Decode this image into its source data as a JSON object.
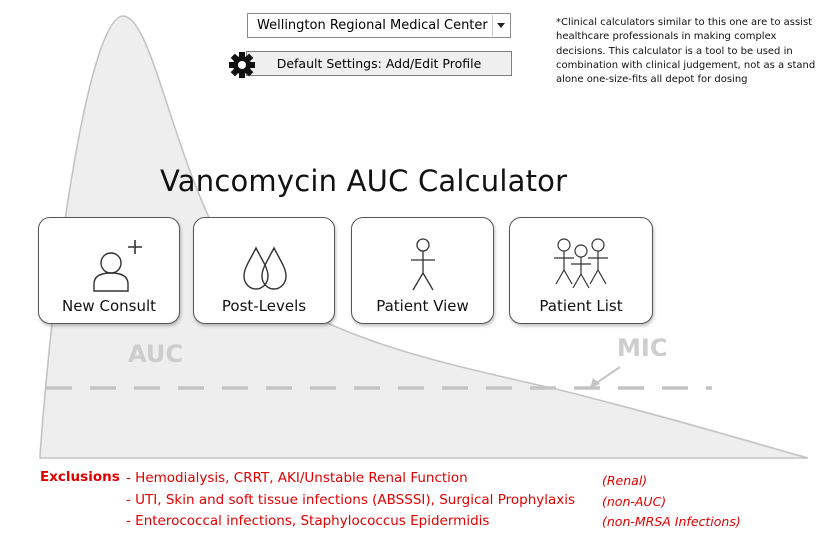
{
  "facility_select": {
    "value": "Wellington Regional Medical Center"
  },
  "settings": {
    "label": "Default Settings: Add/Edit Profile",
    "icon": "gear-icon"
  },
  "disclaimer": "*Clinical calculators similar to this one are to assist healthcare professionals in making complex decisions. This calculator is a tool to be used in combination with clinical judgement, not as a stand alone one-size-fits all depot for dosing",
  "title": "Vancomycin AUC Calculator",
  "tiles": [
    {
      "label": "New Consult",
      "icon": "add-person-icon"
    },
    {
      "label": "Post-Levels",
      "icon": "drops-icon"
    },
    {
      "label": "Patient View",
      "icon": "stick-figure-icon"
    },
    {
      "label": "Patient List",
      "icon": "group-icon"
    }
  ],
  "background": {
    "auc_label": "AUC",
    "mic_label": "MIC"
  },
  "exclusions": {
    "title": "Exclusions",
    "items": [
      {
        "text": "- Hemodialysis, CRRT, AKI/Unstable Renal Function",
        "note": "(Renal)"
      },
      {
        "text": "- UTI, Skin and soft tissue infections (ABSSSI), Surgical Prophylaxis",
        "note": "(non-AUC)"
      },
      {
        "text": "- Enterococcal infections, Staphylococcus Epidermidis",
        "note": "(non-MRSA Infections)"
      }
    ]
  },
  "colors": {
    "exclusion_red": "#e00000",
    "curve_fill": "#eeeeee",
    "curve_stroke": "#c4c4c4"
  }
}
